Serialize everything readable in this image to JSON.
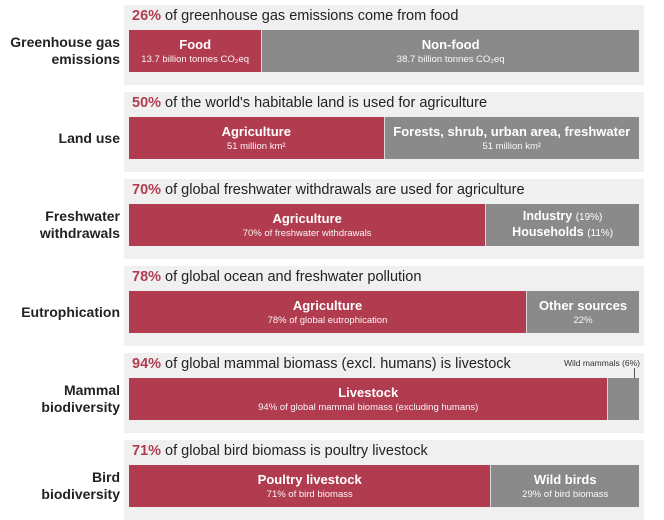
{
  "chart_data": {
    "type": "bar",
    "orientation": "horizontal-stacked-100",
    "colors": {
      "highlight": "#b13c4f",
      "other": "#8a8a8a",
      "panel": "#f0f0f0"
    },
    "rows": [
      {
        "label": "Greenhouse gas emissions",
        "headline_pct": "26%",
        "headline_text": "of greenhouse gas emissions come from food",
        "segments": [
          {
            "value": 26,
            "color": "red",
            "title": "Food",
            "sub": "13.7 billion tonnes CO₂eq"
          },
          {
            "value": 74,
            "color": "gray",
            "title": "Non-food",
            "sub": "38.7 billion tonnes CO₂eq"
          }
        ]
      },
      {
        "label": "Land use",
        "headline_pct": "50%",
        "headline_text": "of the world's habitable land is used for agriculture",
        "segments": [
          {
            "value": 50,
            "color": "red",
            "title": "Agriculture",
            "sub": "51 million km²"
          },
          {
            "value": 50,
            "color": "gray",
            "title": "Forests, shrub, urban area, freshwater",
            "sub": "51 million km²"
          }
        ]
      },
      {
        "label": "Freshwater withdrawals",
        "headline_pct": "70%",
        "headline_text": "of global freshwater withdrawals are used for agriculture",
        "segments": [
          {
            "value": 70,
            "color": "red",
            "title": "Agriculture",
            "sub": "70% of freshwater withdrawals"
          },
          {
            "value": 30,
            "color": "gray",
            "lines": [
              {
                "text": "Industry",
                "paren": "(19%)"
              },
              {
                "text": "Households",
                "paren": "(11%)"
              }
            ]
          }
        ]
      },
      {
        "label": "Eutrophication",
        "headline_pct": "78%",
        "headline_text": "of global ocean and freshwater pollution",
        "segments": [
          {
            "value": 78,
            "color": "red",
            "title": "Agriculture",
            "sub": "78% of global eutrophication"
          },
          {
            "value": 22,
            "color": "gray",
            "title": "Other sources",
            "sub": "22%"
          }
        ]
      },
      {
        "label": "Mammal biodiversity",
        "headline_pct": "94%",
        "headline_text": "of global mammal biomass (excl. humans) is livestock",
        "external_label": "Wild mammals (6%)",
        "segments": [
          {
            "value": 94,
            "color": "red",
            "title": "Livestock",
            "sub": "94% of global mammal biomass (excluding humans)"
          },
          {
            "value": 6,
            "color": "gray"
          }
        ]
      },
      {
        "label": "Bird biodiversity",
        "headline_pct": "71%",
        "headline_text": "of global bird biomass is poultry livestock",
        "segments": [
          {
            "value": 71,
            "color": "red",
            "title": "Poultry livestock",
            "sub": "71% of bird biomass"
          },
          {
            "value": 29,
            "color": "gray",
            "title": "Wild birds",
            "sub": "29% of bird biomass"
          }
        ]
      }
    ]
  }
}
